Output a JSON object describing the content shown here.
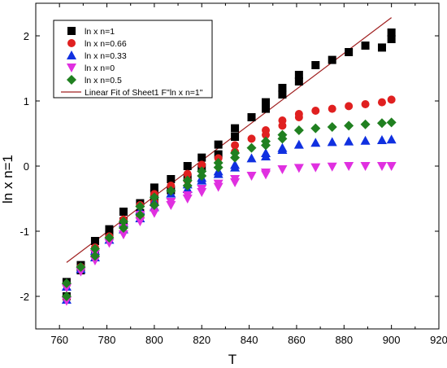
{
  "chart_data": {
    "type": "scatter",
    "title": "",
    "xlabel": "T",
    "ylabel": "ln x n=1",
    "xlim": [
      750,
      920
    ],
    "ylim": [
      -2.5,
      2.5
    ],
    "xticks": [
      "760",
      "780",
      "800",
      "820",
      "840",
      "860",
      "880",
      "900",
      "920"
    ],
    "yticks": [
      "2",
      "1",
      "0",
      "-1",
      "-2"
    ],
    "grid": false,
    "legend_position": "top-left",
    "series": [
      {
        "name": "ln x n=1",
        "marker": "square",
        "color": "#000000",
        "points": [
          [
            763,
            -1.78
          ],
          [
            763,
            -2.0
          ],
          [
            769,
            -1.52
          ],
          [
            769,
            -1.6
          ],
          [
            775,
            -1.15
          ],
          [
            775,
            -1.35
          ],
          [
            781,
            -0.97
          ],
          [
            781,
            -1.05
          ],
          [
            787,
            -0.7
          ],
          [
            787,
            -0.85
          ],
          [
            794,
            -0.57
          ],
          [
            794,
            -0.72
          ],
          [
            800,
            -0.33
          ],
          [
            800,
            -0.43
          ],
          [
            800,
            -0.53
          ],
          [
            807,
            -0.2
          ],
          [
            807,
            -0.37
          ],
          [
            814,
            0.0
          ],
          [
            814,
            -0.18
          ],
          [
            820,
            0.13
          ],
          [
            820,
            -0.02
          ],
          [
            827,
            0.33
          ],
          [
            827,
            0.18
          ],
          [
            834,
            0.58
          ],
          [
            834,
            0.45
          ],
          [
            841,
            0.75
          ],
          [
            847,
            0.98
          ],
          [
            847,
            0.88
          ],
          [
            854,
            1.2
          ],
          [
            854,
            1.1
          ],
          [
            861,
            1.4
          ],
          [
            861,
            1.3
          ],
          [
            868,
            1.55
          ],
          [
            875,
            1.63
          ],
          [
            882,
            1.75
          ],
          [
            889,
            1.85
          ],
          [
            896,
            1.82
          ],
          [
            900,
            2.05
          ],
          [
            900,
            1.95
          ]
        ]
      },
      {
        "name": "ln x n=0.66",
        "marker": "circle",
        "color": "#e02020",
        "points": [
          [
            763,
            -1.82
          ],
          [
            763,
            -2.03
          ],
          [
            769,
            -1.55
          ],
          [
            775,
            -1.25
          ],
          [
            775,
            -1.38
          ],
          [
            781,
            -1.08
          ],
          [
            787,
            -0.82
          ],
          [
            787,
            -0.93
          ],
          [
            794,
            -0.6
          ],
          [
            794,
            -0.75
          ],
          [
            800,
            -0.43
          ],
          [
            800,
            -0.55
          ],
          [
            807,
            -0.3
          ],
          [
            814,
            -0.12
          ],
          [
            814,
            -0.22
          ],
          [
            820,
            0.02
          ],
          [
            827,
            0.12
          ],
          [
            834,
            0.32
          ],
          [
            834,
            0.22
          ],
          [
            841,
            0.42
          ],
          [
            847,
            0.55
          ],
          [
            847,
            0.48
          ],
          [
            854,
            0.7
          ],
          [
            854,
            0.62
          ],
          [
            861,
            0.8
          ],
          [
            861,
            0.75
          ],
          [
            868,
            0.85
          ],
          [
            875,
            0.88
          ],
          [
            882,
            0.92
          ],
          [
            889,
            0.95
          ],
          [
            896,
            0.98
          ],
          [
            900,
            1.02
          ]
        ]
      },
      {
        "name": "ln x n=0.33",
        "marker": "triangle-up",
        "color": "#1030e0",
        "points": [
          [
            763,
            -1.85
          ],
          [
            763,
            -2.05
          ],
          [
            769,
            -1.58
          ],
          [
            775,
            -1.3
          ],
          [
            775,
            -1.4
          ],
          [
            781,
            -1.13
          ],
          [
            787,
            -0.87
          ],
          [
            787,
            -0.97
          ],
          [
            794,
            -0.68
          ],
          [
            794,
            -0.8
          ],
          [
            800,
            -0.55
          ],
          [
            800,
            -0.63
          ],
          [
            807,
            -0.42
          ],
          [
            814,
            -0.28
          ],
          [
            814,
            -0.35
          ],
          [
            820,
            -0.18
          ],
          [
            820,
            -0.22
          ],
          [
            827,
            -0.08
          ],
          [
            827,
            -0.12
          ],
          [
            834,
            0.02
          ],
          [
            834,
            -0.02
          ],
          [
            841,
            0.12
          ],
          [
            847,
            0.2
          ],
          [
            847,
            0.15
          ],
          [
            854,
            0.28
          ],
          [
            854,
            0.25
          ],
          [
            861,
            0.33
          ],
          [
            868,
            0.36
          ],
          [
            875,
            0.37
          ],
          [
            882,
            0.38
          ],
          [
            889,
            0.39
          ],
          [
            896,
            0.4
          ],
          [
            900,
            0.41
          ]
        ]
      },
      {
        "name": "ln x n=0",
        "marker": "triangle-down",
        "color": "#e030e0",
        "points": [
          [
            763,
            -1.87
          ],
          [
            763,
            -2.07
          ],
          [
            769,
            -1.62
          ],
          [
            775,
            -1.35
          ],
          [
            775,
            -1.45
          ],
          [
            781,
            -1.18
          ],
          [
            787,
            -0.95
          ],
          [
            787,
            -1.05
          ],
          [
            794,
            -0.75
          ],
          [
            794,
            -0.85
          ],
          [
            800,
            -0.65
          ],
          [
            800,
            -0.72
          ],
          [
            807,
            -0.55
          ],
          [
            807,
            -0.6
          ],
          [
            814,
            -0.45
          ],
          [
            814,
            -0.5
          ],
          [
            820,
            -0.35
          ],
          [
            820,
            -0.4
          ],
          [
            827,
            -0.27
          ],
          [
            827,
            -0.32
          ],
          [
            834,
            -0.2
          ],
          [
            834,
            -0.25
          ],
          [
            841,
            -0.15
          ],
          [
            847,
            -0.1
          ],
          [
            847,
            -0.13
          ],
          [
            854,
            -0.05
          ],
          [
            861,
            -0.03
          ],
          [
            868,
            -0.02
          ],
          [
            875,
            -0.01
          ],
          [
            882,
            0.0
          ],
          [
            889,
            0.0
          ],
          [
            896,
            0.0
          ],
          [
            900,
            0.0
          ]
        ]
      },
      {
        "name": "ln x n=0.5",
        "marker": "diamond",
        "color": "#208020",
        "points": [
          [
            763,
            -1.8
          ],
          [
            763,
            -2.0
          ],
          [
            769,
            -1.55
          ],
          [
            775,
            -1.27
          ],
          [
            775,
            -1.38
          ],
          [
            781,
            -1.1
          ],
          [
            787,
            -0.85
          ],
          [
            787,
            -0.95
          ],
          [
            794,
            -0.62
          ],
          [
            794,
            -0.75
          ],
          [
            800,
            -0.48
          ],
          [
            800,
            -0.6
          ],
          [
            807,
            -0.38
          ],
          [
            814,
            -0.22
          ],
          [
            814,
            -0.3
          ],
          [
            820,
            -0.08
          ],
          [
            820,
            -0.15
          ],
          [
            827,
            0.05
          ],
          [
            827,
            -0.02
          ],
          [
            834,
            0.2
          ],
          [
            834,
            0.13
          ],
          [
            841,
            0.28
          ],
          [
            847,
            0.38
          ],
          [
            847,
            0.32
          ],
          [
            854,
            0.48
          ],
          [
            854,
            0.42
          ],
          [
            861,
            0.55
          ],
          [
            868,
            0.58
          ],
          [
            875,
            0.6
          ],
          [
            882,
            0.62
          ],
          [
            889,
            0.64
          ],
          [
            896,
            0.66
          ],
          [
            900,
            0.67
          ]
        ]
      },
      {
        "name": "Linear Fit of Sheet1 F\"ln x n=1\"",
        "marker": "line",
        "color": "#a02020",
        "points": [
          [
            763,
            -1.48
          ],
          [
            900,
            2.28
          ]
        ]
      }
    ]
  }
}
